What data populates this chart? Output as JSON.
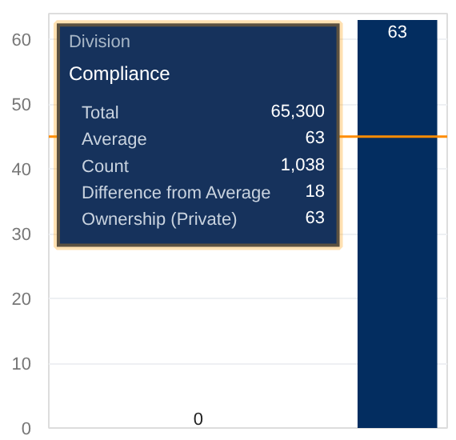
{
  "chart_data": {
    "type": "bar",
    "categories": [
      null,
      null,
      null,
      null
    ],
    "values": [
      null,
      0,
      null,
      63
    ],
    "colors": [
      "#0070d2",
      "#0070d2",
      "#a8b7c7",
      "#032d60"
    ],
    "value_labels": [
      null,
      "0",
      null,
      "63"
    ],
    "ylim": [
      0,
      64
    ],
    "yticks": [
      0,
      10,
      20,
      30,
      40,
      50,
      60
    ],
    "grid": "y",
    "tick_labels": "y",
    "ref_lines": [
      {
        "axis": "y",
        "value": 45,
        "color": "#ff8c00"
      }
    ],
    "annotations": [
      "Division",
      "Compliance",
      "Total",
      "65,300",
      "Average",
      "63",
      "Count",
      "1,038",
      "Difference from Average",
      "18",
      "Ownership (Private)",
      "63"
    ]
  }
}
